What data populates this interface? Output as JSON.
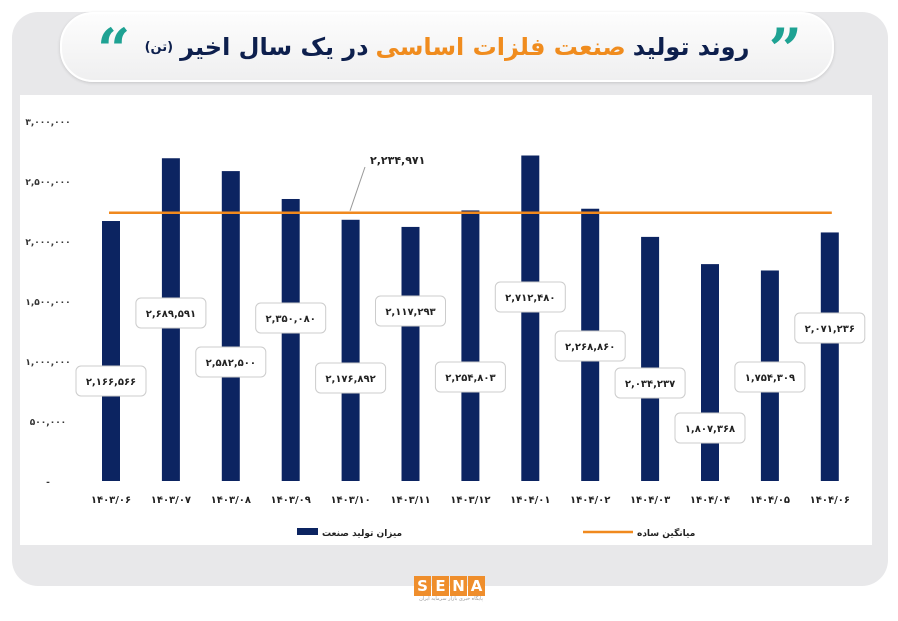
{
  "header": {
    "title_part1": "روند تولید",
    "title_accent": "صنعت فلزات اساسی",
    "title_part2": "در یک سال اخیر",
    "title_unit": "(تن)",
    "open_quote_icon": "quote-open-icon",
    "close_quote_icon": "quote-close-icon",
    "quote_color": "#1ea293"
  },
  "logo": {
    "text": "SENA",
    "letters": [
      "S",
      "E",
      "N",
      "A"
    ],
    "subtitle": "پایگاه خبری بازار سرمایه ایران",
    "color": "#ef8e2c"
  },
  "chart_data": {
    "type": "bar",
    "categories": [
      "۱۴۰۳/۰۶",
      "۱۴۰۳/۰۷",
      "۱۴۰۳/۰۸",
      "۱۴۰۳/۰۹",
      "۱۴۰۳/۱۰",
      "۱۴۰۳/۱۱",
      "۱۴۰۳/۱۲",
      "۱۴۰۴/۰۱",
      "۱۴۰۴/۰۲",
      "۱۴۰۴/۰۳",
      "۱۴۰۴/۰۴",
      "۱۴۰۴/۰۵",
      "۱۴۰۴/۰۶"
    ],
    "series": [
      {
        "name": "میزان تولید صنعت",
        "type": "bar",
        "color": "#0c2461",
        "values": [
          2166566,
          2689591,
          2582500,
          2350080,
          2176892,
          2117293,
          2254803,
          2712480,
          2268860,
          2034237,
          1807368,
          1754309,
          2071236
        ],
        "data_labels": [
          "۲,۱۶۶,۵۶۶",
          "۲,۶۸۹,۵۹۱",
          "۲,۵۸۲,۵۰۰",
          "۲,۳۵۰,۰۸۰",
          "۲,۱۷۶,۸۹۲",
          "۲,۱۱۷,۲۹۳",
          "۲,۲۵۴,۸۰۳",
          "۲,۷۱۲,۴۸۰",
          "۲,۲۶۸,۸۶۰",
          "۲,۰۳۴,۲۳۷",
          "۱,۸۰۷,۳۶۸",
          "۱,۷۵۴,۳۰۹",
          "۲,۰۷۱,۲۳۶"
        ]
      },
      {
        "name": "میانگین ساده",
        "type": "line",
        "color": "#f0891e",
        "value": 2234971,
        "data_label": "۲,۲۳۴,۹۷۱"
      }
    ],
    "yticks": [
      0,
      500000,
      1000000,
      1500000,
      2000000,
      2500000,
      3000000
    ],
    "ytick_labels": [
      "-",
      "۵۰۰,۰۰۰",
      "۱,۰۰۰,۰۰۰",
      "۱,۵۰۰,۰۰۰",
      "۲,۰۰۰,۰۰۰",
      "۲,۵۰۰,۰۰۰",
      "۳,۰۰۰,۰۰۰"
    ],
    "ylim": [
      0,
      3000000
    ],
    "grid": false,
    "legend_position": "bottom",
    "title": "",
    "xlabel": "",
    "ylabel": ""
  }
}
